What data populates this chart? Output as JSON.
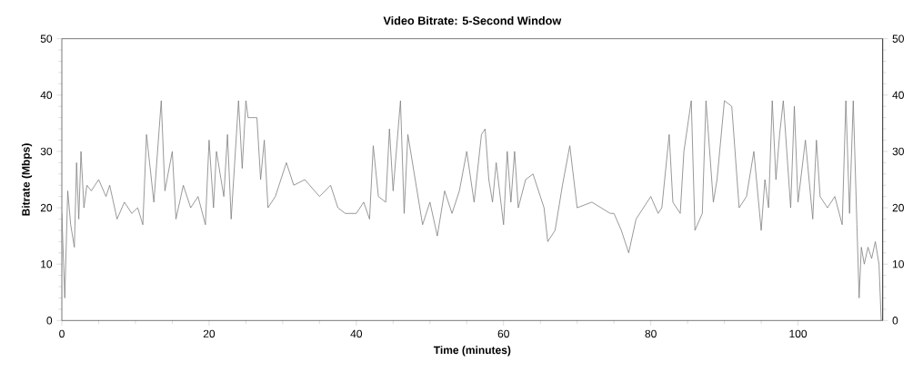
{
  "chart_data": {
    "type": "line",
    "title": "Video Bitrate: 5-Second Window",
    "xlabel": "Time (minutes)",
    "ylabel": "Bitrate (Mbps)",
    "x": [
      0,
      0.4,
      0.8,
      1.2,
      1.7,
      2.0,
      2.3,
      2.6,
      3.0,
      3.4,
      4.0,
      5.0,
      6.0,
      6.5,
      7.5,
      8.5,
      9.5,
      10.3,
      11.0,
      11.5,
      12.5,
      13.5,
      14.0,
      15.0,
      15.5,
      16.5,
      17.5,
      18.5,
      19.5,
      20.0,
      20.6,
      21.0,
      22.0,
      22.5,
      23.0,
      24.0,
      24.5,
      25.0,
      25.3,
      26.5,
      27.0,
      27.5,
      28.0,
      29.0,
      30.5,
      31.5,
      33.0,
      35.0,
      36.5,
      37.5,
      38.5,
      40.0,
      41.0,
      41.8,
      42.3,
      43.0,
      44.0,
      44.5,
      45.0,
      46.0,
      46.5,
      47.0,
      48.0,
      49.0,
      50.0,
      51.0,
      52.0,
      53.0,
      54.0,
      55.0,
      56.0,
      57.0,
      57.5,
      58.0,
      58.5,
      59.0,
      60.0,
      60.5,
      61.0,
      61.5,
      62.0,
      63.0,
      64.0,
      65.0,
      65.5,
      66.0,
      67.0,
      68.0,
      69.0,
      70.0,
      72.0,
      74.5,
      75.0,
      76.0,
      77.0,
      78.0,
      79.0,
      80.0,
      81.0,
      81.5,
      82.5,
      83.0,
      84.0,
      84.5,
      85.5,
      86.0,
      87.0,
      87.5,
      88.5,
      89.0,
      90.0,
      91.0,
      92.0,
      93.0,
      94.0,
      95.0,
      95.5,
      96.0,
      96.5,
      97.0,
      97.5,
      98.0,
      99.0,
      99.5,
      100.0,
      101.0,
      102.0,
      102.5,
      103.0,
      104.0,
      105.0,
      106.0,
      106.5,
      107.0,
      107.5,
      108.0,
      108.3,
      108.6,
      109.0,
      109.5,
      110.0,
      110.5,
      111.0,
      111.3
    ],
    "values": [
      19,
      4,
      23,
      17,
      13,
      28,
      18,
      30,
      20,
      24,
      23,
      25,
      22,
      24,
      18,
      21,
      19,
      20,
      17,
      33,
      21,
      39,
      23,
      30,
      18,
      24,
      20,
      22,
      17,
      32,
      20,
      30,
      22,
      33,
      18,
      39,
      27,
      39,
      36,
      36,
      25,
      32,
      20,
      22,
      28,
      24,
      25,
      22,
      24,
      20,
      19,
      19,
      21,
      18,
      31,
      22,
      21,
      34,
      23,
      39,
      19,
      33,
      25,
      17,
      21,
      15,
      23,
      19,
      23,
      30,
      21,
      33,
      34,
      25,
      21,
      28,
      17,
      30,
      21,
      30,
      20,
      25,
      26,
      22,
      20,
      14,
      16,
      24,
      31,
      20,
      21,
      19,
      19,
      16,
      12,
      18,
      20,
      22,
      19,
      20,
      33,
      21,
      19,
      30,
      39,
      16,
      19,
      39,
      21,
      25,
      39,
      38,
      20,
      22,
      30,
      16,
      25,
      20,
      39,
      25,
      33,
      39,
      20,
      38,
      21,
      32,
      18,
      32,
      22,
      20,
      22,
      17,
      39,
      19,
      39,
      17,
      4,
      13,
      10,
      13,
      11,
      14,
      10,
      0
    ],
    "color": "#7f7f7f",
    "xlim": [
      0,
      111.5
    ],
    "ylim": [
      0,
      50
    ],
    "y2lim": [
      0,
      50
    ],
    "xticks": [
      0,
      20,
      40,
      60,
      80,
      100
    ],
    "yticks": [
      0,
      10,
      20,
      30,
      40,
      50
    ],
    "y2ticks": [
      0,
      10,
      20,
      30,
      40,
      50
    ],
    "grid": false
  }
}
